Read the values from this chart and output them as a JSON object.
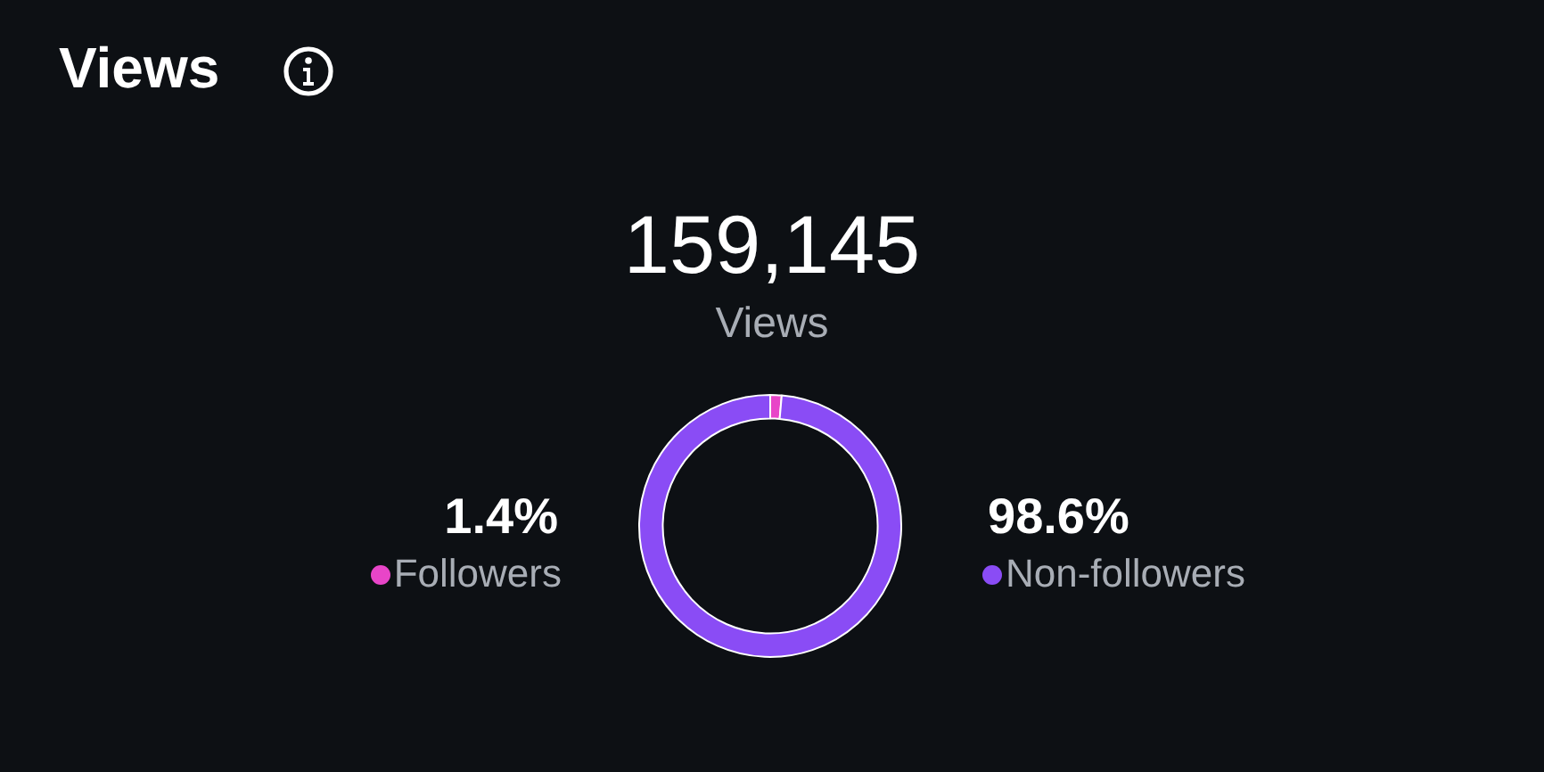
{
  "chart_data": {
    "type": "donut",
    "title": "Views",
    "annotations": [
      "159,145",
      "Views"
    ],
    "categories": [
      "Followers",
      "Non-followers"
    ],
    "values": [
      1.4,
      98.6
    ],
    "colors": [
      "#e845c8",
      "#8a4cf5"
    ],
    "value_labels": [
      "1.4%",
      "98.6%"
    ],
    "legend": "bottom"
  }
}
